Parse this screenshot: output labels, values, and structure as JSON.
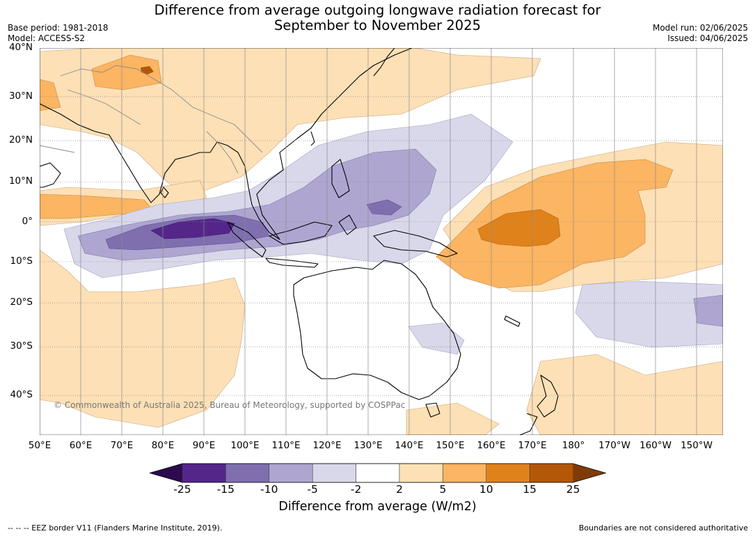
{
  "header": {
    "title_line1": "Difference from average outgoing longwave radiation forecast for",
    "title_line2": "September to November 2025",
    "base_period": "Base period: 1981-2018",
    "model": "Model: ACCESS-S2",
    "model_run": "Model run: 02/06/2025",
    "issued": "Issued: 04/06/2025"
  },
  "map": {
    "lat_labels": [
      "40°N",
      "30°N",
      "20°N",
      "10°N",
      "0°",
      "10°S",
      "20°S",
      "30°S",
      "40°S"
    ],
    "lat_values": [
      40,
      30,
      20,
      10,
      0,
      -10,
      -20,
      -30,
      -40
    ],
    "lon_labels": [
      "50°E",
      "60°E",
      "70°E",
      "80°E",
      "90°E",
      "100°E",
      "110°E",
      "120°E",
      "130°E",
      "140°E",
      "150°E",
      "160°E",
      "170°E",
      "180°",
      "170°W",
      "160°W",
      "150°W"
    ],
    "lon_values": [
      50,
      60,
      70,
      80,
      90,
      100,
      110,
      120,
      130,
      140,
      150,
      160,
      170,
      180,
      190,
      200,
      210
    ],
    "copyright": "© Commonwealth of Australia 2025, Bureau of Meteorology, supported by COSPPac"
  },
  "colorbar": {
    "title": "Difference from average (W/m2)",
    "ticks": [
      "-25",
      "-15",
      "-10",
      "-5",
      "-2",
      "2",
      "5",
      "10",
      "15",
      "25"
    ],
    "colors": [
      "#2d0a4e",
      "#54268a",
      "#7f6faf",
      "#aea6d0",
      "#d8d8ea",
      "#ffffff",
      "#fde0b6",
      "#fbb563",
      "#e0821b",
      "#b35808",
      "#7f3b08"
    ]
  },
  "footer": {
    "eez": "--  --  -- EEZ border V11 (Flanders Marine Institute, 2019).",
    "disclaimer": "Boundaries are not considered authoritative"
  }
}
